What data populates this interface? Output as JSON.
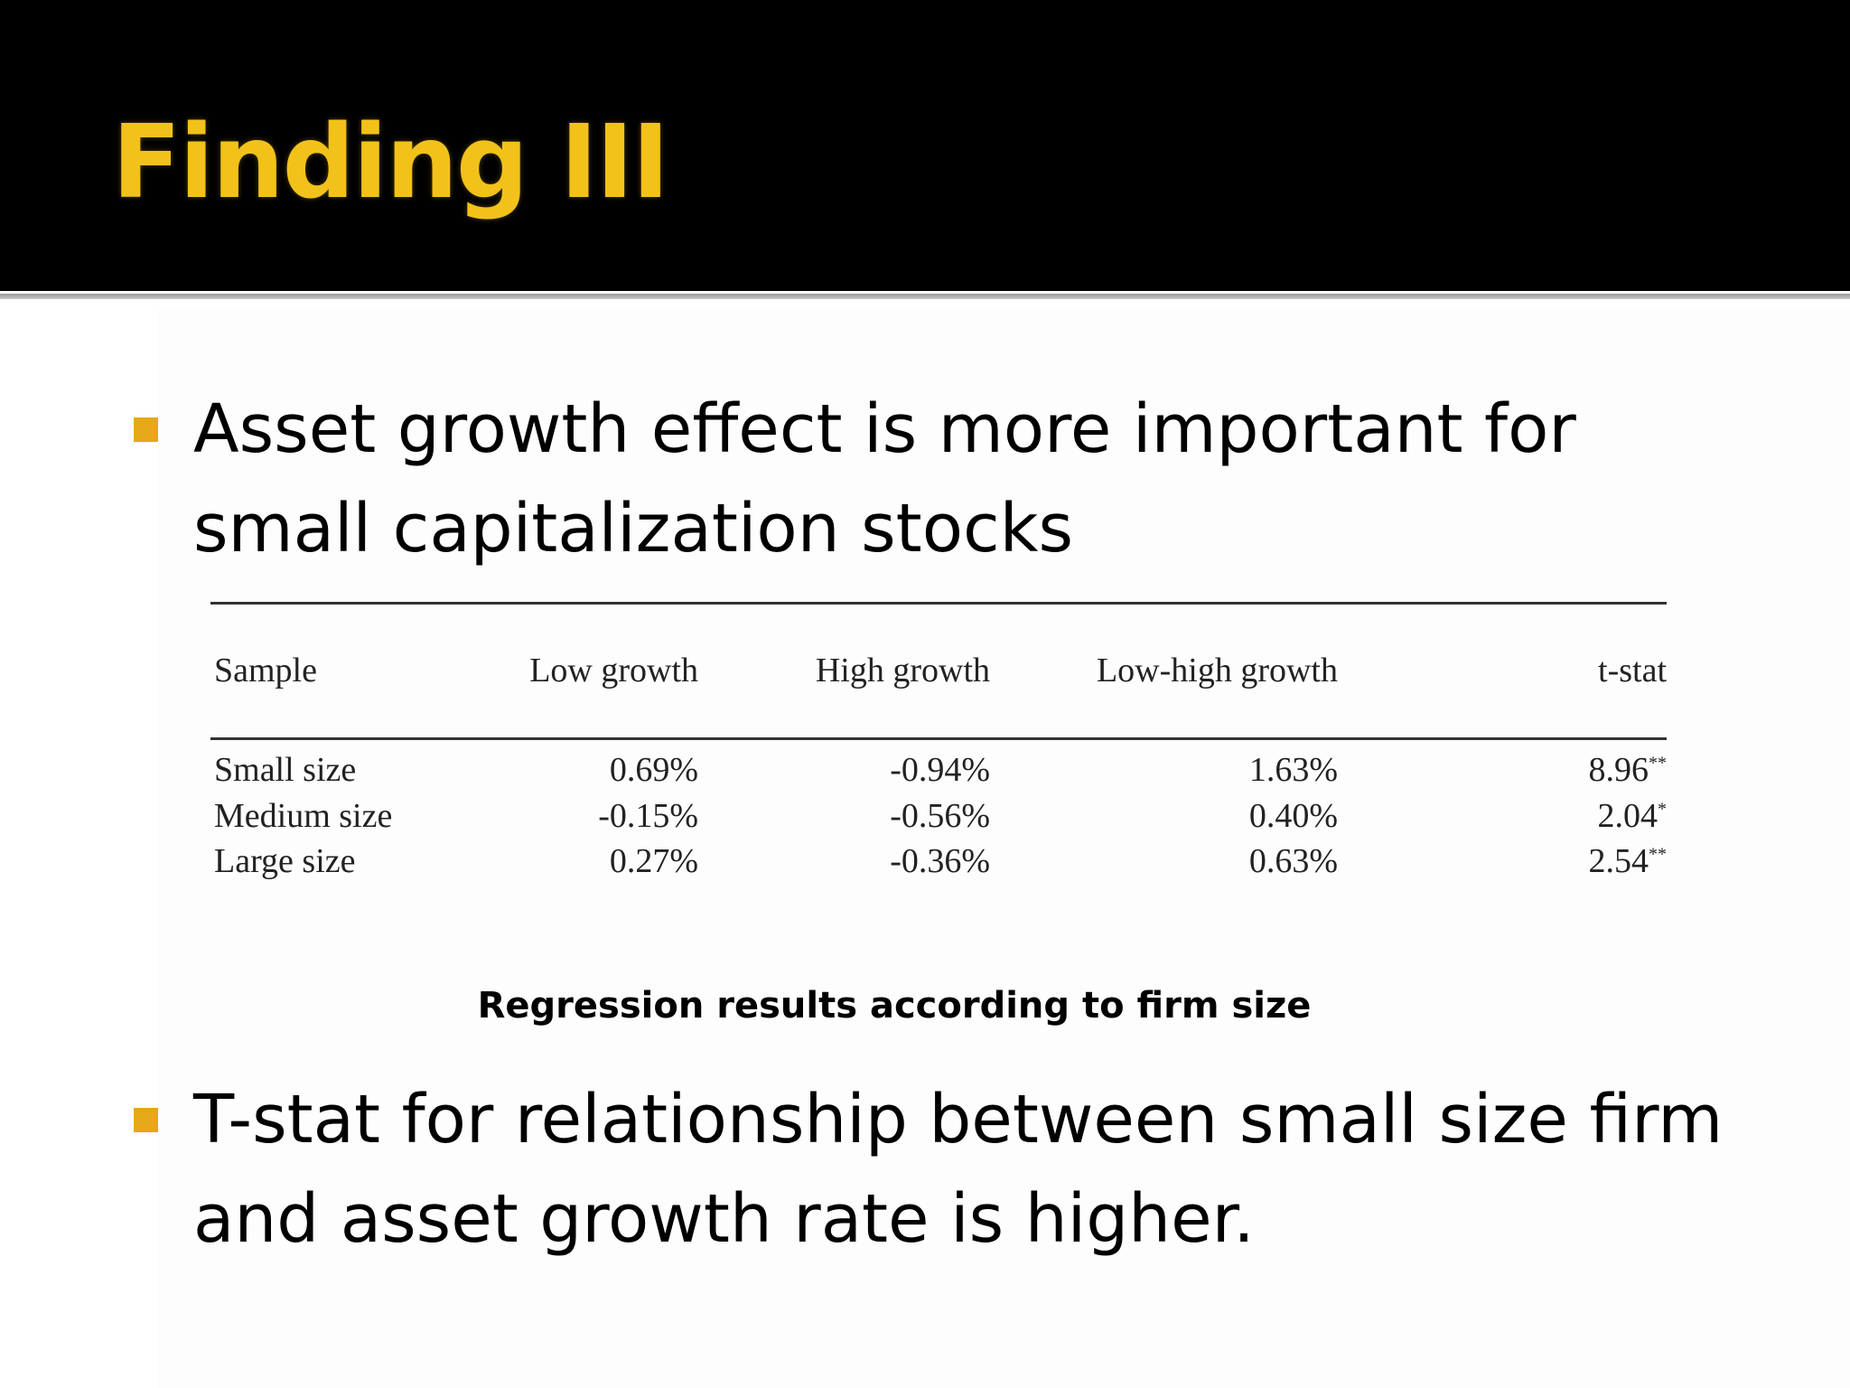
{
  "slide": {
    "title": "Finding III"
  },
  "bullets": [
    "Asset growth effect is more important for small capitalization stocks",
    "T-stat for relationship between small size firm and asset growth rate is higher."
  ],
  "table": {
    "headers": [
      "Sample",
      "Low growth",
      "High growth",
      "Low-high growth",
      "t-stat"
    ],
    "rows": [
      {
        "sample": "Small size",
        "low": "0.69%",
        "high": "-0.94%",
        "diff": "1.63%",
        "tstat": "8.96",
        "sig": "**"
      },
      {
        "sample": "Medium size",
        "low": "-0.15%",
        "high": "-0.56%",
        "diff": "0.40%",
        "tstat": "2.04",
        "sig": "*"
      },
      {
        "sample": "Large size",
        "low": "0.27%",
        "high": "-0.36%",
        "diff": "0.63%",
        "tstat": "2.54",
        "sig": "**"
      }
    ]
  },
  "caption": "Regression results according to firm size",
  "colors": {
    "title": "#f2c21b",
    "bullet": "#e6a817",
    "header_band": "#000000"
  }
}
